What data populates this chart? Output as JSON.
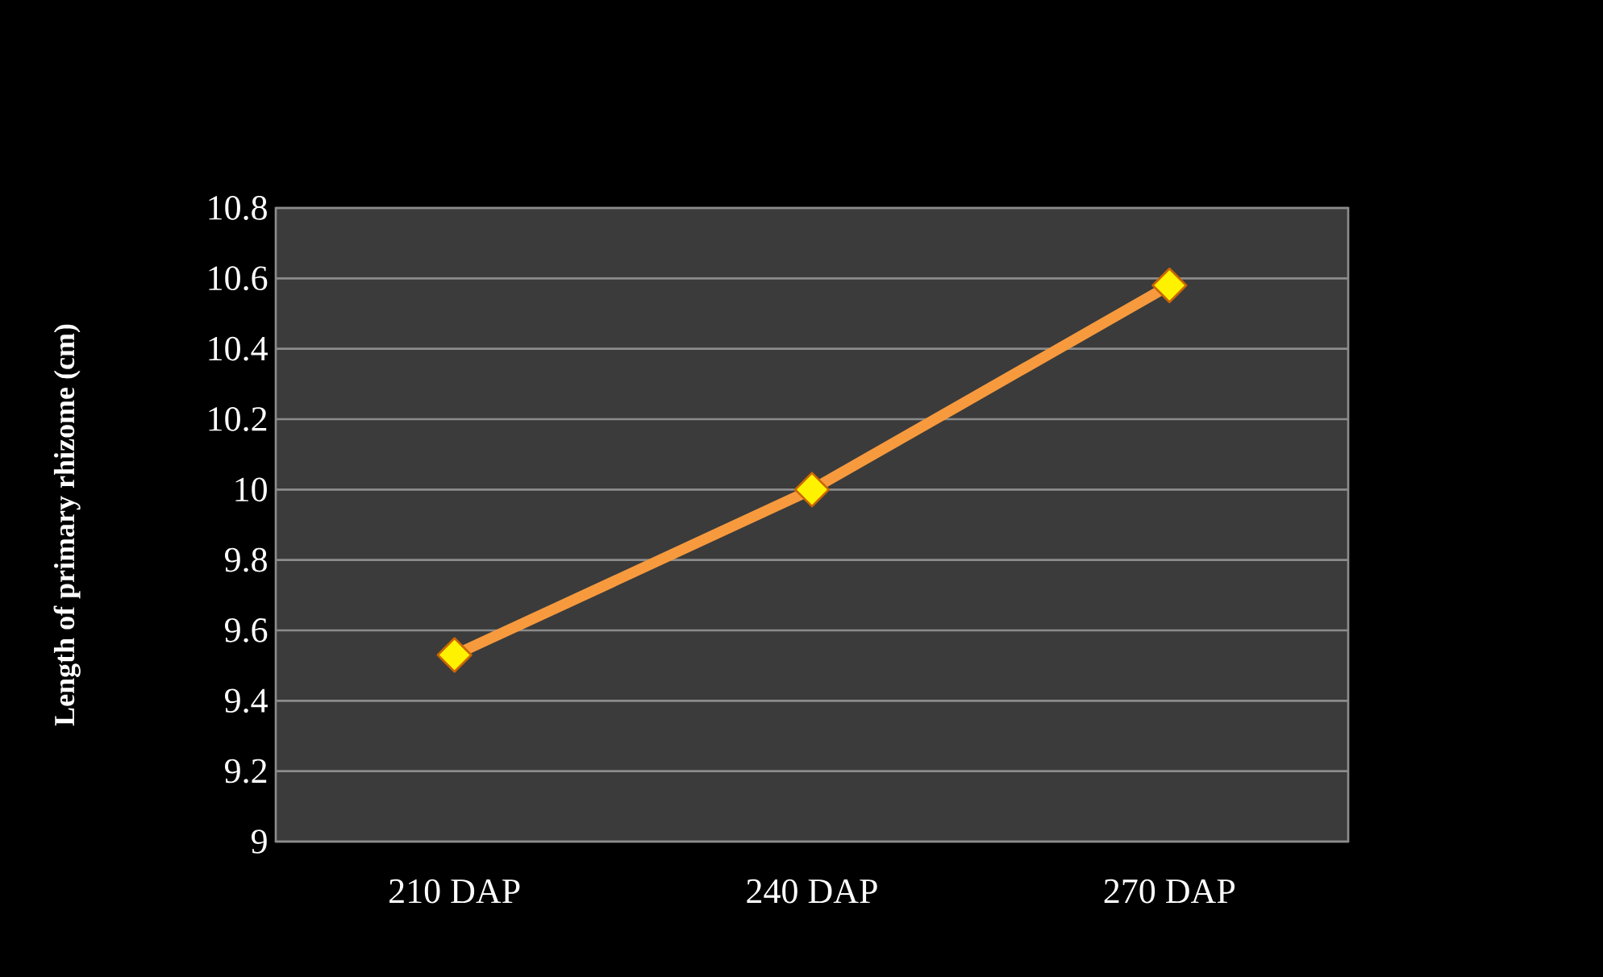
{
  "chart_data": {
    "type": "line",
    "ylabel": "Length of primary rhizome (cm)",
    "categories": [
      "210 DAP",
      "240 DAP",
      "270 DAP"
    ],
    "series": [
      {
        "color": "#f79a3e",
        "values": [
          9.53,
          10.0,
          10.58
        ]
      }
    ],
    "ylim": [
      9,
      10.8
    ],
    "yticks": [
      9,
      9.2,
      9.4,
      9.6,
      9.8,
      10,
      10.2,
      10.4,
      10.6,
      10.8
    ],
    "grid": "y",
    "marker": "diamond",
    "line_style": "solid"
  }
}
